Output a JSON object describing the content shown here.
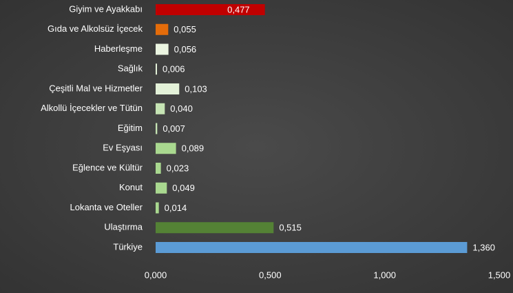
{
  "chart_data": {
    "type": "bar",
    "orientation": "horizontal",
    "categories": [
      "Giyim ve Ayakkabı",
      "Gıda ve Alkolsüz İçecek",
      "Haberleşme",
      "Sağlık",
      "Çeşitli Mal ve Hizmetler",
      "Alkollü İçecekler ve Tütün",
      "Eğitim",
      "Ev Eşyası",
      "Eğlence ve Kültür",
      "Konut",
      "Lokanta ve Oteller",
      "Ulaştırma",
      "Türkiye"
    ],
    "values": [
      0.477,
      0.055,
      0.056,
      0.006,
      0.103,
      0.04,
      0.007,
      0.089,
      0.023,
      0.049,
      0.014,
      0.515,
      1.36
    ],
    "value_labels": [
      "0,477",
      "0,055",
      "0,056",
      "0,006",
      "0,103",
      "0,040",
      "0,007",
      "0,089",
      "0,023",
      "0,049",
      "0,014",
      "0,515",
      "1,360"
    ],
    "colors": [
      "#c00000",
      "#e46c0a",
      "#ebf5e1",
      "#e3f1d8",
      "#e3f1d8",
      "#c6e4b4",
      "#c6e4b4",
      "#a9d88f",
      "#a9d88f",
      "#a9d88f",
      "#a9d88f",
      "#548235",
      "#5b9bd5"
    ],
    "xlim": [
      0,
      1.5
    ],
    "xticks": [
      {
        "value": 0,
        "label": "0,000"
      },
      {
        "value": 0.5,
        "label": "0,500"
      },
      {
        "value": 1,
        "label": "1,000"
      },
      {
        "value": 1.5,
        "label": "1,500"
      }
    ]
  }
}
